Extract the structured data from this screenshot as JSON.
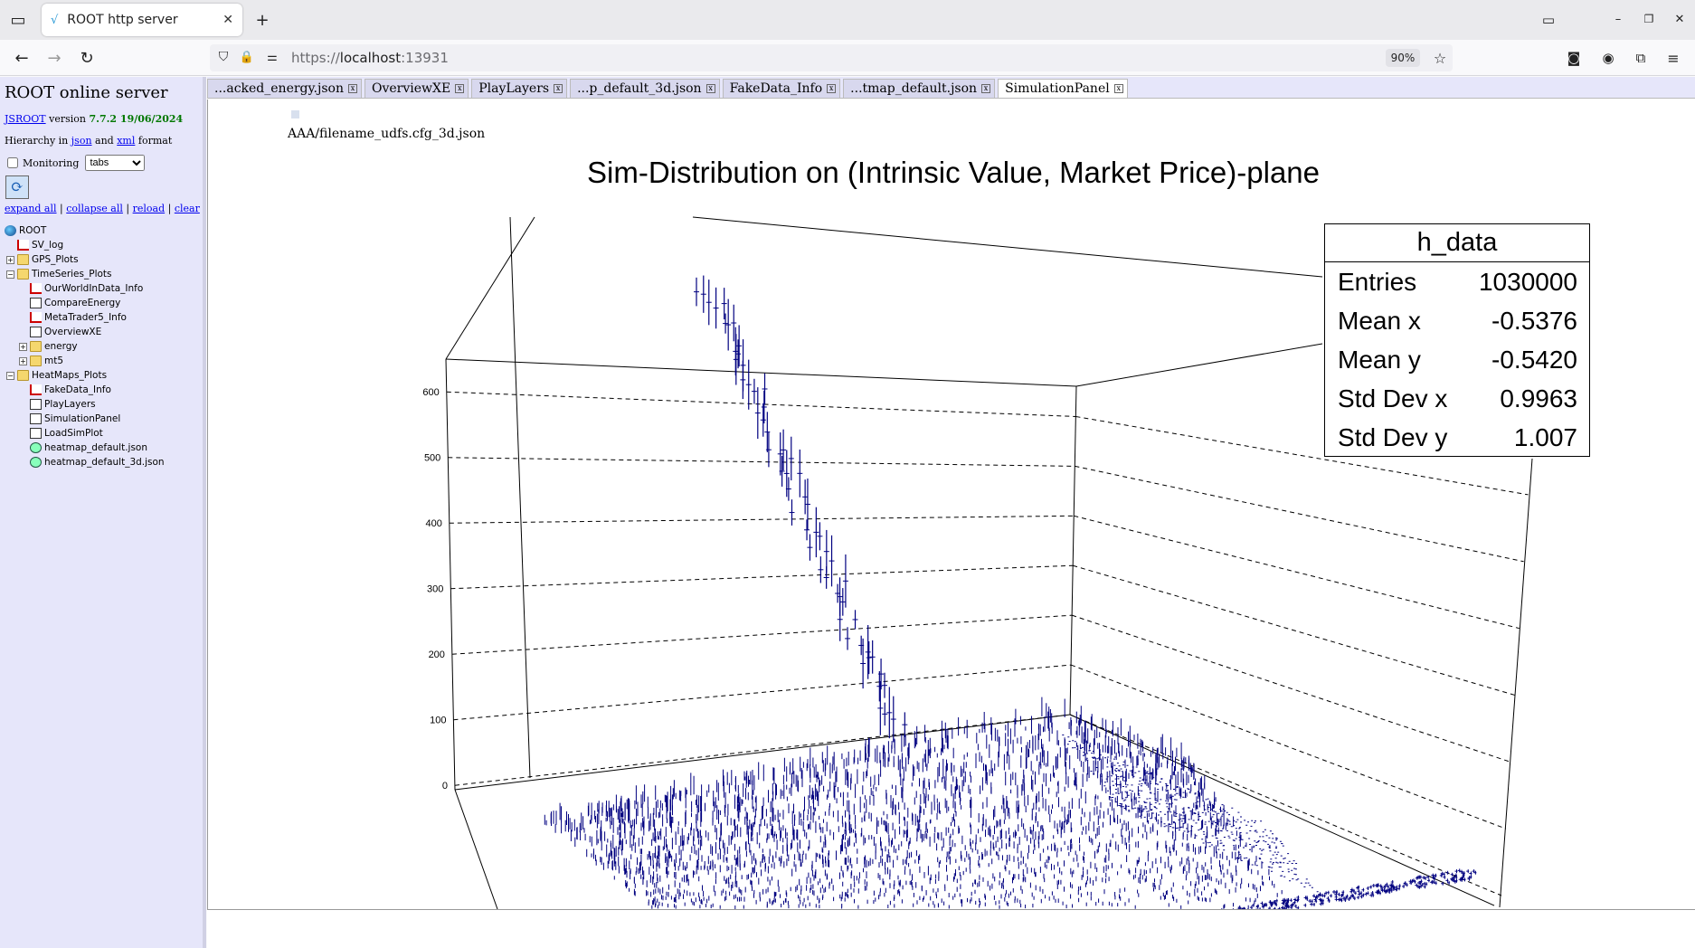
{
  "browser": {
    "tab_title": "ROOT http server",
    "url_prefix": "https://",
    "url_host": "localhost",
    "url_port": ":13931",
    "zoom": "90%"
  },
  "sidebar": {
    "title": "ROOT online server",
    "jsroot_link": "JSROOT",
    "version_word": "version",
    "version": "7.7.2 19/06/2024",
    "hier_prefix": "Hierarchy in",
    "json_link": "json",
    "and_word": "and",
    "xml_link": "xml",
    "format_word": "format",
    "monitoring_label": "Monitoring",
    "layout_select": "tabs",
    "actions": [
      "expand all",
      "collapse all",
      "reload",
      "clear"
    ],
    "tree": [
      {
        "label": "ROOT",
        "icon": "globe-icon",
        "level": 0
      },
      {
        "label": "SV_log",
        "icon": "histogram-icon",
        "level": 1
      },
      {
        "label": "GPS_Plots",
        "icon": "folder-icon",
        "level": 1,
        "toggle": "+"
      },
      {
        "label": "TimeSeries_Plots",
        "icon": "folder-icon",
        "level": 1,
        "toggle": "-"
      },
      {
        "label": "OurWorldInData_Info",
        "icon": "histogram-icon",
        "level": 2
      },
      {
        "label": "CompareEnergy",
        "icon": "canvas-icon",
        "level": 2
      },
      {
        "label": "MetaTrader5_Info",
        "icon": "histogram-icon",
        "level": 2
      },
      {
        "label": "OverviewXE",
        "icon": "canvas-icon",
        "level": 2
      },
      {
        "label": "energy",
        "icon": "folder-icon",
        "level": 2,
        "toggle": "+"
      },
      {
        "label": "mt5",
        "icon": "folder-icon",
        "level": 2,
        "toggle": "+"
      },
      {
        "label": "HeatMaps_Plots",
        "icon": "folder-icon",
        "level": 1,
        "toggle": "-"
      },
      {
        "label": "FakeData_Info",
        "icon": "histogram-icon",
        "level": 2
      },
      {
        "label": "PlayLayers",
        "icon": "canvas-icon",
        "level": 2
      },
      {
        "label": "SimulationPanel",
        "icon": "canvas-icon",
        "level": 2
      },
      {
        "label": "LoadSimPlot",
        "icon": "canvas-icon",
        "level": 2
      },
      {
        "label": "heatmap_default.json",
        "icon": "json-icon",
        "level": 2
      },
      {
        "label": "heatmap_default_3d.json",
        "icon": "json-icon",
        "level": 2
      }
    ]
  },
  "content_tabs": [
    {
      "label": "...acked_energy.json",
      "active": false
    },
    {
      "label": "OverviewXE",
      "active": false
    },
    {
      "label": "PlayLayers",
      "active": false
    },
    {
      "label": "...p_default_3d.json",
      "active": false
    },
    {
      "label": "FakeData_Info",
      "active": false
    },
    {
      "label": "...tmap_default.json",
      "active": false
    },
    {
      "label": "SimulationPanel",
      "active": true
    }
  ],
  "file_label": "AAA/filename_udfs.cfg_3d.json",
  "stats": {
    "title": "h_data",
    "rows": [
      {
        "label": "Entries",
        "value": "1030000"
      },
      {
        "label": "Mean x",
        "value": "-0.5376"
      },
      {
        "label": "Mean y",
        "value": "-0.5420"
      },
      {
        "label": "Std Dev x",
        "value": "0.9963"
      },
      {
        "label": "Std Dev y",
        "value": "1.007"
      }
    ]
  },
  "chart_data": {
    "type": "lego3d",
    "title": "Sim-Distribution on (Intrinsic Value, Market Price)-plane",
    "z_ticks": [
      0,
      100,
      200,
      300,
      400,
      500,
      600
    ],
    "zlim": [
      0,
      650
    ],
    "grid": true,
    "series_color": "#000080"
  }
}
